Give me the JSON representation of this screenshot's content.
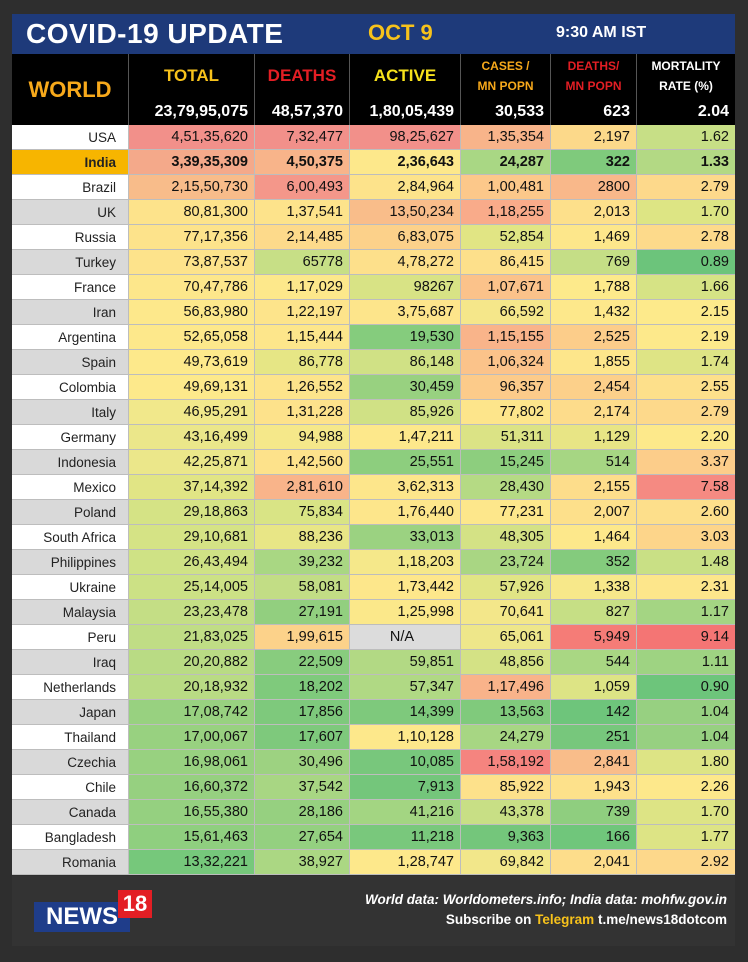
{
  "header": {
    "title": "COVID-19 UPDATE",
    "date": "OCT 9",
    "time": "9:30 AM IST"
  },
  "columns": {
    "world": "WORLD",
    "total": "TOTAL",
    "deaths": "DEATHS",
    "active": "ACTIVE",
    "cases_mn_1": "CASES /",
    "cases_mn_2": "MN POPN",
    "deaths_mn_1": "DEATHS/",
    "deaths_mn_2": "MN POPN",
    "mortality_1": "MORTALITY",
    "mortality_2": "RATE (%)"
  },
  "world_totals": {
    "total": "23,79,95,075",
    "deaths": "48,57,370",
    "active": "1,80,05,439",
    "cases_mn": "30,533",
    "deaths_mn": "623",
    "mortality": "2.04"
  },
  "colors": {
    "header_blue": "#1e3a7a",
    "title_yellow": "#f7c21b",
    "world_orange": "#f7a91b",
    "deaths_red": "#e31e24",
    "active_yellow": "#f7e21b",
    "highlight": "#f7b500"
  },
  "rows": [
    {
      "country": "USA",
      "total": "4,51,35,620",
      "deaths": "7,32,477",
      "active": "98,25,627",
      "cases_mn": "1,35,354",
      "deaths_mn": "2,197",
      "mortality": "1.62",
      "bg": [
        "#f2908a",
        "#f2908a",
        "#f2908a",
        "#f8b48a",
        "#fcd98a",
        "#c7df86"
      ]
    },
    {
      "country": "India",
      "total": "3,39,35,309",
      "deaths": "4,50,375",
      "active": "2,36,643",
      "cases_mn": "24,287",
      "deaths_mn": "322",
      "mortality": "1.33",
      "bg": [
        "#f4a98a",
        "#f8b48a",
        "#fde88b",
        "#a9d784",
        "#7fca7c",
        "#b3d984"
      ],
      "highlight": true
    },
    {
      "country": "Brazil",
      "total": "2,15,50,730",
      "deaths": "6,00,493",
      "active": "2,84,964",
      "cases_mn": "1,00,481",
      "deaths_mn": "2800",
      "mortality": "2.79",
      "bg": [
        "#f8bc8a",
        "#f4978a",
        "#fde38b",
        "#fcc88a",
        "#f9b88a",
        "#fdd98b"
      ]
    },
    {
      "country": "UK",
      "total": "80,81,300",
      "deaths": "1,37,541",
      "active": "13,50,234",
      "cases_mn": "1,18,255",
      "deaths_mn": "2,013",
      "mortality": "1.70",
      "bg": [
        "#fde38b",
        "#fde38b",
        "#f9bd8a",
        "#f9ab8a",
        "#fde08b",
        "#dde584"
      ]
    },
    {
      "country": "Russia",
      "total": "77,17,356",
      "deaths": "2,14,485",
      "active": "6,83,075",
      "cases_mn": "52,854",
      "deaths_mn": "1,469",
      "mortality": "2.78",
      "bg": [
        "#fde38b",
        "#fdda8b",
        "#fcd18a",
        "#e1e584",
        "#fde78b",
        "#fdda8b"
      ]
    },
    {
      "country": "Turkey",
      "total": "73,87,537",
      "deaths": "65778",
      "active": "4,78,272",
      "cases_mn": "86,415",
      "deaths_mn": "769",
      "mortality": "0.89",
      "bg": [
        "#fde38b",
        "#c7df86",
        "#fde08b",
        "#fde08b",
        "#c5de86",
        "#6cc47b"
      ]
    },
    {
      "country": "France",
      "total": "70,47,786",
      "deaths": "1,17,029",
      "active": "98267",
      "cases_mn": "1,07,671",
      "deaths_mn": "1,788",
      "mortality": "1.66",
      "bg": [
        "#fde78b",
        "#fde88b",
        "#d8e385",
        "#fbc28a",
        "#fdea8b",
        "#d6e385"
      ]
    },
    {
      "country": "Iran",
      "total": "56,83,980",
      "deaths": "1,22,197",
      "active": "3,75,687",
      "cases_mn": "66,592",
      "deaths_mn": "1,432",
      "mortality": "2.15",
      "bg": [
        "#fde88b",
        "#fde48b",
        "#fde58b",
        "#f5e78a",
        "#fde88b",
        "#fdea8b"
      ]
    },
    {
      "country": "Argentina",
      "total": "52,65,058",
      "deaths": "1,15,444",
      "active": "19,530",
      "cases_mn": "1,15,155",
      "deaths_mn": "2,525",
      "mortality": "2.19",
      "bg": [
        "#fde88b",
        "#fde68b",
        "#85cc7d",
        "#f9b48a",
        "#fccd8a",
        "#fde98b"
      ]
    },
    {
      "country": "Spain",
      "total": "49,73,619",
      "deaths": "86,778",
      "active": "86,148",
      "cases_mn": "1,06,324",
      "deaths_mn": "1,855",
      "mortality": "1.74",
      "bg": [
        "#fde98b",
        "#e6e685",
        "#d0e185",
        "#fbc38a",
        "#fde68b",
        "#dee485"
      ]
    },
    {
      "country": "Colombia",
      "total": "49,69,131",
      "deaths": "1,26,552",
      "active": "30,459",
      "cases_mn": "96,357",
      "deaths_mn": "2,454",
      "mortality": "2.55",
      "bg": [
        "#fde98b",
        "#fde48b",
        "#98d180",
        "#fccb8a",
        "#fcd08a",
        "#fde08b"
      ]
    },
    {
      "country": "Italy",
      "total": "46,95,291",
      "deaths": "1,31,228",
      "active": "85,926",
      "cases_mn": "77,802",
      "deaths_mn": "2,174",
      "mortality": "2.79",
      "bg": [
        "#f1e88b",
        "#fde28b",
        "#d0e185",
        "#fde58b",
        "#fddc8b",
        "#fdd98b"
      ]
    },
    {
      "country": "Germany",
      "total": "43,16,499",
      "deaths": "94,988",
      "active": "1,47,211",
      "cases_mn": "51,311",
      "deaths_mn": "1,129",
      "mortality": "2.20",
      "bg": [
        "#ebe78a",
        "#f5e88a",
        "#fde88b",
        "#dbe385",
        "#e8e585",
        "#fde98b"
      ]
    },
    {
      "country": "Indonesia",
      "total": "42,25,871",
      "deaths": "1,42,560",
      "active": "25,551",
      "cases_mn": "15,245",
      "deaths_mn": "514",
      "mortality": "3.37",
      "bg": [
        "#ebe78a",
        "#fde28b",
        "#8dce7e",
        "#8dce7e",
        "#a6d683",
        "#fccd8a"
      ]
    },
    {
      "country": "Mexico",
      "total": "37,14,392",
      "deaths": "2,81,610",
      "active": "3,62,313",
      "cases_mn": "28,430",
      "deaths_mn": "2,155",
      "mortality": "7.58",
      "bg": [
        "#e1e585",
        "#f9b48a",
        "#fde68b",
        "#b5da84",
        "#fddd8b",
        "#f58a82"
      ]
    },
    {
      "country": "Poland",
      "total": "29,18,863",
      "deaths": "75,834",
      "active": "1,76,440",
      "cases_mn": "77,231",
      "deaths_mn": "2,007",
      "mortality": "2.60",
      "bg": [
        "#d5e385",
        "#d9e485",
        "#fde68b",
        "#fde78b",
        "#fde08b",
        "#fddf8b"
      ]
    },
    {
      "country": "South Africa",
      "total": "29,10,681",
      "deaths": "88,236",
      "active": "33,013",
      "cases_mn": "48,305",
      "deaths_mn": "1,464",
      "mortality": "3.03",
      "bg": [
        "#d5e385",
        "#e8e686",
        "#9bd281",
        "#d4e285",
        "#fde88b",
        "#fdd58a"
      ]
    },
    {
      "country": "Philippines",
      "total": "26,43,494",
      "deaths": "39,232",
      "active": "1,18,203",
      "cases_mn": "23,724",
      "deaths_mn": "352",
      "mortality": "1.48",
      "bg": [
        "#cfe285",
        "#a9d783",
        "#f5e88a",
        "#a9d683",
        "#84cb7d",
        "#c9e085"
      ]
    },
    {
      "country": "Ukraine",
      "total": "25,14,005",
      "deaths": "58,081",
      "active": "1,73,442",
      "cases_mn": "57,926",
      "deaths_mn": "1,338",
      "mortality": "2.31",
      "bg": [
        "#cce185",
        "#c2dd85",
        "#fde78b",
        "#e1e585",
        "#f7e88a",
        "#fde68b"
      ]
    },
    {
      "country": "Malaysia",
      "total": "23,23,478",
      "deaths": "27,191",
      "active": "1,25,998",
      "cases_mn": "70,641",
      "deaths_mn": "827",
      "mortality": "1.17",
      "bg": [
        "#c4de85",
        "#92cf7f",
        "#fbe88a",
        "#f3e78a",
        "#c6df85",
        "#a4d583"
      ]
    },
    {
      "country": "Peru",
      "total": "21,83,025",
      "deaths": "1,99,615",
      "active": "N/A",
      "cases_mn": "65,061",
      "deaths_mn": "5,949",
      "mortality": "9.14",
      "bg": [
        "#c0dd85",
        "#fcd28a",
        "#dcdcdc",
        "#eee78a",
        "#f57c77",
        "#f47574"
      ]
    },
    {
      "country": "Iraq",
      "total": "20,20,882",
      "deaths": "22,509",
      "active": "59,851",
      "cases_mn": "48,856",
      "deaths_mn": "544",
      "mortality": "1.11",
      "bg": [
        "#b9db84",
        "#88cc7e",
        "#b2d984",
        "#d4e285",
        "#a9d783",
        "#9ed382"
      ]
    },
    {
      "country": "Netherlands",
      "total": "20,18,932",
      "deaths": "18,202",
      "active": "57,347",
      "cases_mn": "1,17,496",
      "deaths_mn": "1,059",
      "mortality": "0.90",
      "bg": [
        "#b9db84",
        "#7fca7c",
        "#b0d984",
        "#f9b38a",
        "#dde485",
        "#6dc57b"
      ]
    },
    {
      "country": "Japan",
      "total": "17,08,742",
      "deaths": "17,856",
      "active": "14,399",
      "cases_mn": "13,563",
      "deaths_mn": "142",
      "mortality": "1.04",
      "bg": [
        "#98d180",
        "#7ec97c",
        "#7ec97c",
        "#80ca7c",
        "#6ec57b",
        "#97d081"
      ]
    },
    {
      "country": "Thailand",
      "total": "17,00,067",
      "deaths": "17,607",
      "active": "1,10,128",
      "cases_mn": "24,279",
      "deaths_mn": "251",
      "mortality": "1.04",
      "bg": [
        "#98d180",
        "#7ec97c",
        "#fde88b",
        "#a7d683",
        "#77c77c",
        "#97d081"
      ]
    },
    {
      "country": "Czechia",
      "total": "16,98,061",
      "deaths": "30,496",
      "active": "10,085",
      "cases_mn": "1,58,192",
      "deaths_mn": "2,841",
      "mortality": "1.80",
      "bg": [
        "#98d180",
        "#9dd281",
        "#78c77c",
        "#f5847f",
        "#f9bd8a",
        "#dde485"
      ]
    },
    {
      "country": "Chile",
      "total": "16,60,372",
      "deaths": "37,542",
      "active": "7,913",
      "cases_mn": "85,922",
      "deaths_mn": "1,943",
      "mortality": "2.26",
      "bg": [
        "#96d080",
        "#a8d683",
        "#74c67b",
        "#fde18b",
        "#fde18b",
        "#fde88b"
      ]
    },
    {
      "country": "Canada",
      "total": "16,55,380",
      "deaths": "28,186",
      "active": "41,216",
      "cases_mn": "43,378",
      "deaths_mn": "739",
      "mortality": "1.70",
      "bg": [
        "#95d080",
        "#96d080",
        "#a3d582",
        "#c8df85",
        "#8fce7f",
        "#dde485"
      ]
    },
    {
      "country": "Bangladesh",
      "total": "15,61,463",
      "deaths": "27,654",
      "active": "11,218",
      "cases_mn": "9,363",
      "deaths_mn": "166",
      "mortality": "1.77",
      "bg": [
        "#8fcf7f",
        "#94d080",
        "#79c87c",
        "#74c67b",
        "#70c67b",
        "#dde485"
      ]
    },
    {
      "country": "Romania",
      "total": "13,32,221",
      "deaths": "38,927",
      "active": "1,28,747",
      "cases_mn": "69,842",
      "deaths_mn": "2,041",
      "mortality": "2.92",
      "bg": [
        "#76c87b",
        "#abd783",
        "#fde88b",
        "#f2e78a",
        "#fddd8b",
        "#fdd88b"
      ]
    }
  ],
  "footer": {
    "logo_news": "NEWS",
    "logo_18": "18",
    "source": "World data: Worldometers.info; India data: mohfw.gov.in",
    "subscribe_prefix": "Subscribe on",
    "telegram": "Telegram",
    "telegram_link": "t.me/news18dotcom"
  }
}
